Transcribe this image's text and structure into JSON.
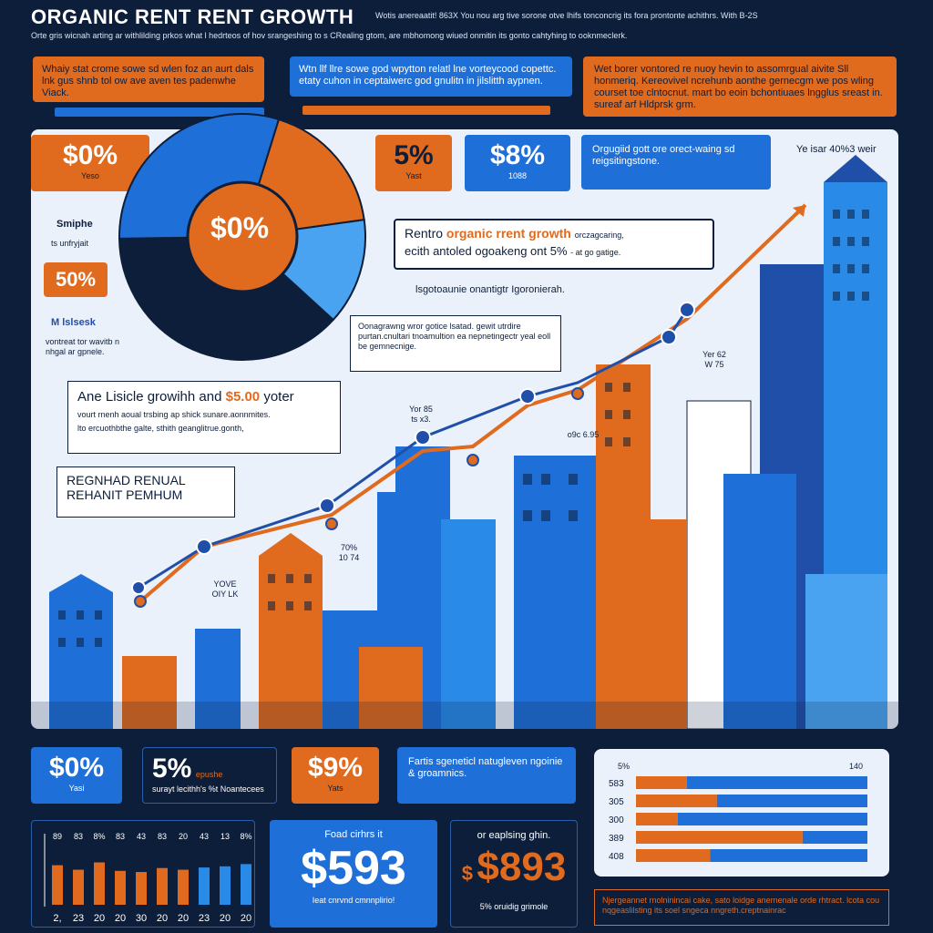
{
  "header": {
    "title": "ORGANIC RENT RENT GROWTH",
    "title_note": "Wotis anereaatit! 863X You nou arg tive sorone otve lhifs tonconcrig its fora prontonte achithrs. With B-2S",
    "subtitle": "Orte gris wicnah arting ar withlilding prkos what l hedrteos of hov srangeshing to s CRealing gtom, are mbhomong wiued onmitin its gonto cahtyhing to ooknmeclerk."
  },
  "top_notes": [
    {
      "text": "Whaiy stat crome sowe sd wlen foz an aurt dals lnk gus shnb tol ow ave aven tes padenwhe Viack."
    },
    {
      "text": "Wtn llf llre sowe god wpytton relatl lne vorteycood copettc. etaty cuhon in ceptaiwerc god gnulitn in jilslitth aypnen."
    },
    {
      "text": "Wet borer vontored re nuoy hevin to assomrgual aivite Sll honmeriq. Kereovivel ncrehunb aonthe gernecgm we pos wling courset toe clntocnut. mart bo eoin bchontiuaes lngglus sreast in. sureaf arf Hldprsk grm."
    }
  ],
  "stat_cards_top": [
    {
      "value": "$0%",
      "label": "Yeso"
    },
    {
      "value": "5%",
      "label": "Yast"
    },
    {
      "value": "$8%",
      "label": "1088"
    }
  ],
  "callout_top": "Orgugiid gott ore orect-waing sd reigsitingstone.",
  "year_label_top": "Ye isar 40%3 weir",
  "pie": {
    "center_label": "$0%",
    "slices": [
      {
        "value": 18,
        "color": "#e06a1e"
      },
      {
        "value": 14,
        "color": "#4aa3f0"
      },
      {
        "value": 22,
        "color": "#0d1e3a"
      },
      {
        "value": 16,
        "color": "#0d1e3a"
      },
      {
        "value": 30,
        "color": "#1f6fd8"
      }
    ]
  },
  "left_labels": {
    "simple": "Smiphe",
    "simple_sub": "ts unfryjait",
    "fifty": "50%",
    "m_label": "M lslsesk",
    "m_sub": "vontreat tor wavitb n nhgal ar gpnele."
  },
  "mid_callout": {
    "lead": "Rentro",
    "highlight": "organic rrent growth",
    "tail": "orczagcaring,",
    "line2": "ecith antoled ogoakeng ont 5%",
    "line2_tail": "- at go gatige."
  },
  "mid_label": "lsgotoaunie onantigtr Igoronierah.",
  "desc_box": "Oonagrawng wror gotice lsatad. gewit utrdire purtan.cnultari tnoamultion ea nepnetingectr yeal eoll be gemnecnige.",
  "growth_box": {
    "title_a": "Ane Lisicle growihh and",
    "title_b": "$5.00",
    "title_c": "yoter",
    "line1": "vourt rnenh aoual trsbing ap shick sunare.aonnmites.",
    "line2": "lto ercuothbthe galte, sthith geanglitrue.gonth,"
  },
  "regional": {
    "line1": "REGNHAD RENUAL",
    "line2": "REHANIT PEMHUM"
  },
  "chart_annotations": [
    {
      "text": "Yor 85",
      "sub": "ts x3."
    },
    {
      "text": "Yer 62",
      "sub": "W 75"
    },
    {
      "text": "o9c",
      "sub": "6.95"
    },
    {
      "text": "YOVE",
      "sub": "OIY LK"
    },
    {
      "text": "70%",
      "sub": "10 74"
    }
  ],
  "bottom_cards": [
    {
      "value": "$0%",
      "label": "Yasi"
    },
    {
      "value": "5%",
      "label": "surayt lecithh's %t Noantecees",
      "tag": "epushe"
    },
    {
      "value": "$9%",
      "label": "Yats"
    }
  ],
  "bottom_callout": "Fartis sgeneticl natugleven ngoinie & groamnics.",
  "bar_chart_small": {
    "labels_top": [
      "89",
      "83",
      "8%",
      "83",
      "43",
      "83",
      "20",
      "43",
      "13",
      "8%"
    ],
    "labels_bottom": [
      "2,",
      "23",
      "20",
      "20",
      "30",
      "20",
      "20",
      "23",
      "20",
      "20"
    ],
    "values": [
      70,
      62,
      75,
      60,
      58,
      65,
      62,
      66,
      68,
      72
    ],
    "colors": [
      "#e06a1e",
      "#e06a1e",
      "#e06a1e",
      "#e06a1e",
      "#e06a1e",
      "#e06a1e",
      "#e06a1e",
      "#2a8ae8",
      "#2a8ae8",
      "#2a8ae8"
    ]
  },
  "big_cards": [
    {
      "label": "Foad cirhrs it",
      "value": "$593",
      "sub": "Ieat cnrvnd cmnnplirio!"
    },
    {
      "label": "or eaplsing ghin.",
      "value": "$893",
      "currency": "$",
      "sub": "5% oruidig grimole"
    }
  ],
  "hbar_chart": {
    "left_top": "5%",
    "right_top": "140",
    "rows": [
      {
        "label": "583",
        "orange": 0.22,
        "blue": 0.78
      },
      {
        "label": "305",
        "orange": 0.35,
        "blue": 0.65
      },
      {
        "label": "300",
        "orange": 0.18,
        "blue": 0.82
      },
      {
        "label": "389",
        "orange": 0.72,
        "blue": 0.28
      },
      {
        "label": "408",
        "orange": 0.32,
        "blue": 0.68
      }
    ]
  },
  "footer_note": "Njergeannet rnolninincai cake, sato loidge anernenale orde rhtract. lcota cou nqgeaslilsting its soel sngeca nngreth.creptnainrac"
}
